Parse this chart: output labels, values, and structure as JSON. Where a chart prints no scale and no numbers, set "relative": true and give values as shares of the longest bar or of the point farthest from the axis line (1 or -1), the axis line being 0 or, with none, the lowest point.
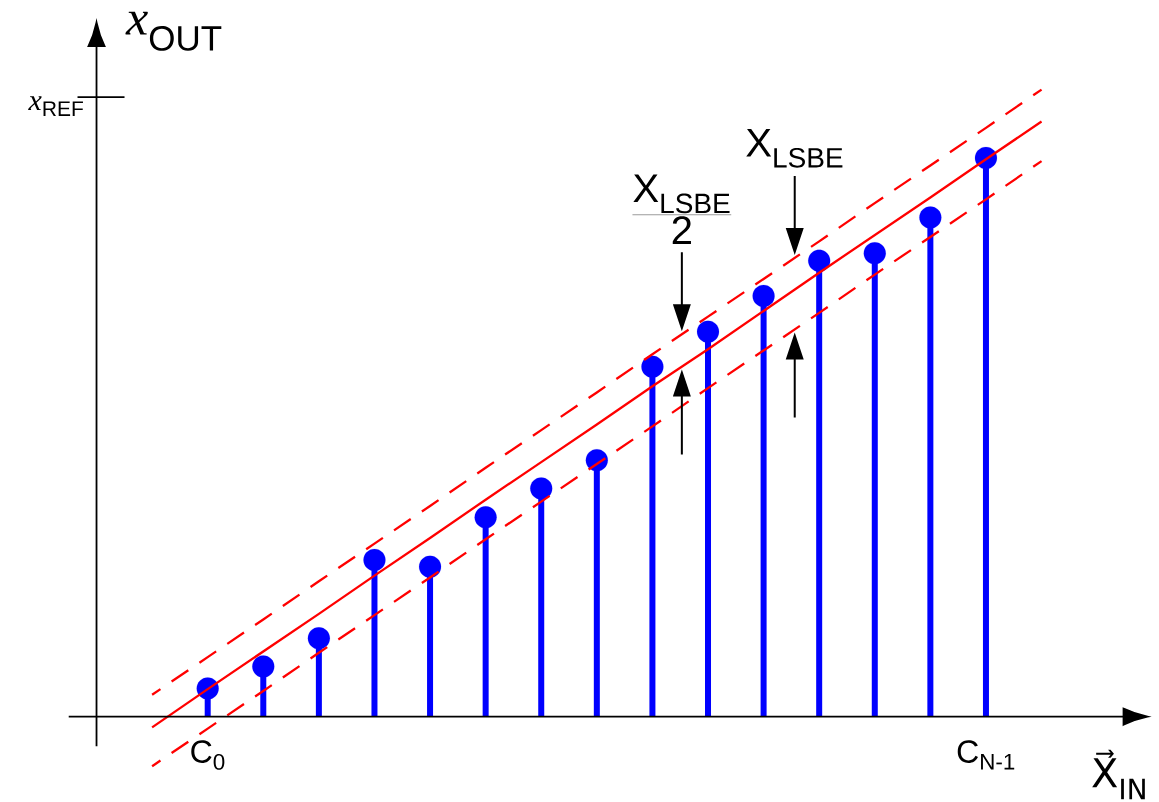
{
  "chart_data": {
    "type": "lollipop",
    "relative": true,
    "tick_labels": "x",
    "xlabel": "X⃗$_{IN}$",
    "ylabel": "*x*$_{OUT}$",
    "categories": [
      null,
      "C$_{0}$",
      null,
      null,
      null,
      null,
      null,
      null,
      null,
      null,
      null,
      null,
      null,
      null,
      null,
      "C$_{N-1}$",
      null
    ],
    "ref_lines": [
      {
        "axis": "y",
        "value": 0.988,
        "label": "*x*$_{REF}$"
      }
    ],
    "series": [
      {
        "color": "#0000ff",
        "marker": "circle",
        "values": [
          null,
          0.045,
          0.08,
          0.125,
          0.25,
          0.239,
          0.318,
          0.364,
          0.409,
          0.558,
          0.614,
          0.671,
          0.727,
          0.739,
          0.796,
          0.891,
          null
        ]
      },
      {
        "type": "line",
        "color": "#ff0000",
        "line_style": "dashed",
        "values": [
          0.035,
          0.095,
          0.155,
          0.216,
          0.276,
          0.336,
          0.397,
          0.457,
          0.517,
          0.578,
          0.638,
          0.698,
          0.758,
          0.819,
          0.879,
          0.939,
          1
        ]
      },
      {
        "type": "line",
        "color": "#ff0000",
        "line_style": "solid",
        "values": [
          -0.017,
          0.044,
          0.104,
          0.164,
          0.225,
          0.285,
          0.346,
          0.406,
          0.466,
          0.527,
          0.586,
          0.647,
          0.708,
          0.768,
          0.828,
          0.889,
          0.949
        ]
      },
      {
        "type": "line",
        "color": "#ff0000",
        "line_style": "dashed",
        "values": [
          -0.079,
          -0.019,
          0.041,
          0.102,
          0.162,
          0.222,
          0.283,
          0.343,
          0.403,
          0.463,
          0.524,
          0.584,
          0.644,
          0.705,
          0.765,
          0.825,
          0.886
        ]
      }
    ],
    "annotations": [
      "\\frac{\\mathrm{X}_{\\mathrm{LSBE}}}{\\mathrm{2}}",
      "\\mathrm{X}_{\\mathrm{LSBE}}"
    ]
  }
}
